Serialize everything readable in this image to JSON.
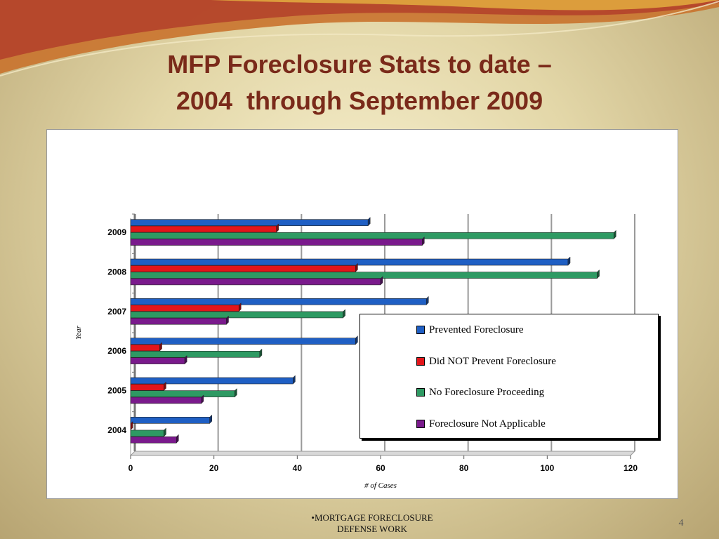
{
  "slide": {
    "title_line1": "MFP Foreclosure Stats to date –",
    "title_line2": "2004  through September 2009",
    "footer_line1": "•MORTGAGE FORECLOSURE",
    "footer_line2": "DEFENSE WORK",
    "page_number": "4"
  },
  "colors": {
    "prevented": "#1f5fc4",
    "did_not_prevent": "#e3151a",
    "no_proceeding": "#2e9a63",
    "not_applicable": "#7a1a8c"
  },
  "chart_data": {
    "type": "bar",
    "orientation": "horizontal",
    "categories": [
      "2004",
      "2005",
      "2006",
      "2007",
      "2008",
      "2009"
    ],
    "series": [
      {
        "name": "Prevented Foreclosure",
        "color": "#1f5fc4",
        "values": [
          19,
          39,
          54,
          71,
          105,
          57
        ]
      },
      {
        "name": "Did NOT Prevent Foreclosure",
        "color": "#e3151a",
        "values": [
          0,
          8,
          7,
          26,
          54,
          35
        ]
      },
      {
        "name": "No Foreclosure Proceeding",
        "color": "#2e9a63",
        "values": [
          8,
          25,
          31,
          51,
          112,
          116
        ]
      },
      {
        "name": "Foreclosure Not Applicable",
        "color": "#7a1a8c",
        "values": [
          11,
          17,
          13,
          23,
          60,
          70
        ]
      }
    ],
    "xlabel": "# of Cases",
    "ylabel": "Year",
    "xlim": [
      0,
      120
    ],
    "xticks": [
      "0",
      "20",
      "40",
      "60",
      "80",
      "100",
      "120"
    ],
    "grid": true,
    "legend_position": "bottom-right"
  }
}
